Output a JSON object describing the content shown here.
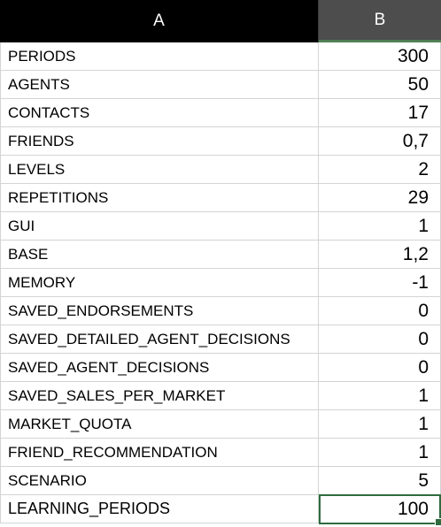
{
  "columns": {
    "a": "A",
    "b": "B"
  },
  "rows": [
    {
      "label": "PERIODS",
      "value": "300"
    },
    {
      "label": "AGENTS",
      "value": "50"
    },
    {
      "label": "CONTACTS",
      "value": "17"
    },
    {
      "label": "FRIENDS",
      "value": "0,7"
    },
    {
      "label": "LEVELS",
      "value": "2"
    },
    {
      "label": "REPETITIONS",
      "value": "29"
    },
    {
      "label": "GUI",
      "value": "1"
    },
    {
      "label": "BASE",
      "value": "1,2"
    },
    {
      "label": "MEMORY",
      "value": "-1"
    },
    {
      "label": "SAVED_ENDORSEMENTS",
      "value": "0"
    },
    {
      "label": "SAVED_DETAILED_AGENT_DECISIONS",
      "value": "0"
    },
    {
      "label": "SAVED_AGENT_DECISIONS",
      "value": "0"
    },
    {
      "label": "SAVED_SALES_PER_MARKET",
      "value": "1"
    },
    {
      "label": "MARKET_QUOTA",
      "value": "1"
    },
    {
      "label": "FRIEND_RECOMMENDATION",
      "value": "1"
    },
    {
      "label": "SCENARIO",
      "value": "5"
    },
    {
      "label": "LEARNING_PERIODS",
      "value": "100"
    }
  ],
  "colors": {
    "header_a": "#000000",
    "header_b": "#4d4d4d",
    "selection": "#2f6b3f",
    "gridline": "#d4d4d4"
  }
}
